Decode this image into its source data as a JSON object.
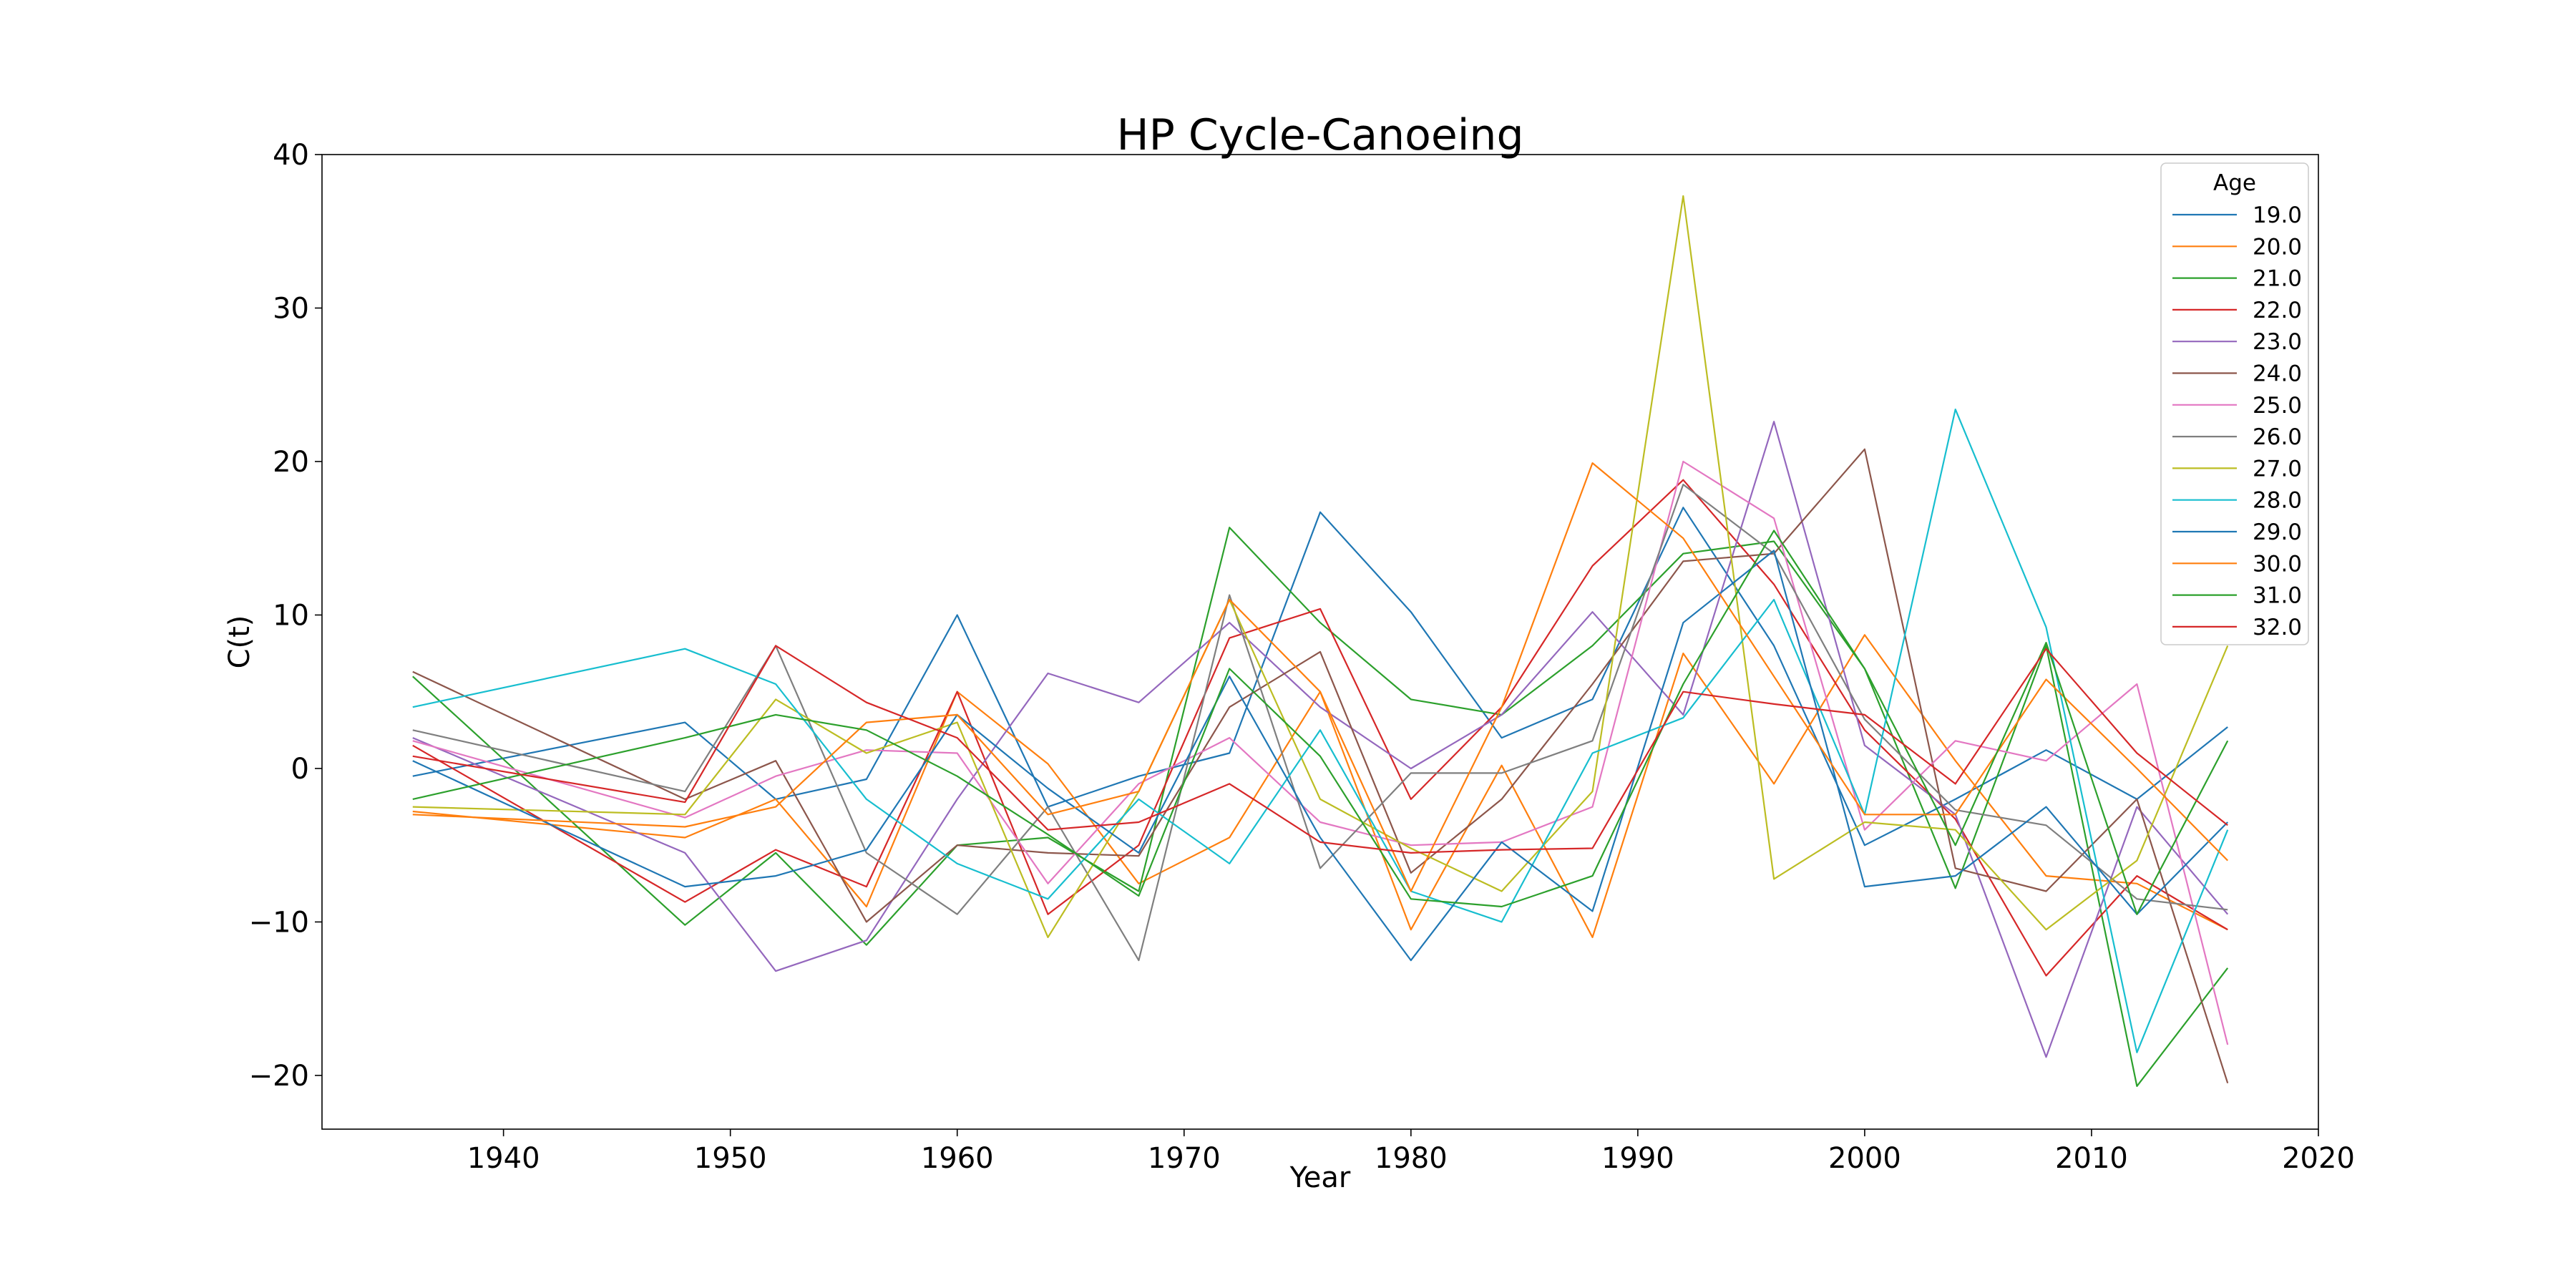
{
  "chart_data": {
    "type": "line",
    "title": "HP Cycle-Canoeing",
    "xlabel": "Year",
    "ylabel": "C(t)",
    "xlim": [
      1932,
      2020
    ],
    "ylim": [
      -23.5,
      40
    ],
    "xticks": [
      1940,
      1950,
      1960,
      1970,
      1980,
      1990,
      2000,
      2010,
      2020
    ],
    "yticks": [
      -20,
      -10,
      0,
      10,
      20,
      30,
      40
    ],
    "ytick_labels": [
      "−20",
      "−10",
      "0",
      "10",
      "20",
      "30",
      "40"
    ],
    "grid": false,
    "legend": {
      "title": "Age",
      "placement": "top-right"
    },
    "x": [
      1936,
      1948,
      1952,
      1956,
      1960,
      1964,
      1968,
      1972,
      1976,
      1980,
      1984,
      1988,
      1992,
      1996,
      2000,
      2004,
      2008,
      2012,
      2016
    ],
    "series": [
      {
        "name": "19.0",
        "color": "#1f77b4",
        "values": [
          -0.5,
          3.0,
          -2.0,
          -0.7,
          10.0,
          -2.5,
          -0.5,
          1.0,
          16.7,
          10.2,
          2.0,
          4.5,
          17.0,
          8.0,
          -5.0,
          -2.0,
          1.2,
          -2.0,
          2.7
        ]
      },
      {
        "name": "20.0",
        "color": "#ff7f0e",
        "values": [
          -2.8,
          -4.5,
          -2.0,
          -9.0,
          5.0,
          0.3,
          -7.5,
          -4.5,
          5.0,
          -10.5,
          0.2,
          -11.0,
          7.5,
          -1.0,
          8.7,
          0.5,
          -7.0,
          -7.5,
          -10.5
        ]
      },
      {
        "name": "21.0",
        "color": "#2ca02c",
        "values": [
          6.0,
          -10.2,
          -5.5,
          -11.5,
          -5.0,
          -4.5,
          -8.0,
          15.7,
          9.5,
          4.5,
          3.5,
          8.0,
          14.0,
          14.8,
          6.5,
          -7.8,
          8.0,
          -20.7,
          -13.0
        ]
      },
      {
        "name": "22.0",
        "color": "#d62728",
        "values": [
          1.5,
          -8.7,
          -5.3,
          -7.7,
          5.0,
          -9.5,
          -5.0,
          8.5,
          10.4,
          -2.0,
          4.0,
          13.2,
          18.8,
          12.0,
          2.5,
          -3.3,
          -13.5,
          -7.0,
          -10.5
        ]
      },
      {
        "name": "23.0",
        "color": "#9467bd",
        "values": [
          2.0,
          -5.5,
          -13.2,
          -11.2,
          -2.0,
          6.2,
          4.3,
          9.5,
          4.0,
          0.0,
          3.5,
          10.2,
          3.5,
          22.6,
          1.5,
          -3.0,
          -18.8,
          -2.5,
          -9.5
        ]
      },
      {
        "name": "24.0",
        "color": "#8c564b",
        "values": [
          6.3,
          -2.0,
          0.5,
          -10.0,
          -5.0,
          -5.5,
          -5.7,
          4.0,
          7.6,
          -6.8,
          -2.0,
          5.5,
          13.5,
          14.0,
          20.8,
          -6.5,
          -8.0,
          -2.0,
          -20.5
        ]
      },
      {
        "name": "25.0",
        "color": "#e377c2",
        "values": [
          1.8,
          -3.2,
          -0.5,
          1.2,
          1.0,
          -7.5,
          -1.0,
          2.0,
          -3.5,
          -5.0,
          -4.8,
          -2.5,
          20.0,
          16.3,
          -4.0,
          1.8,
          0.5,
          5.5,
          -18.0
        ]
      },
      {
        "name": "26.0",
        "color": "#7f7f7f",
        "values": [
          2.5,
          -1.5,
          8.0,
          -5.5,
          -9.5,
          -2.5,
          -12.5,
          11.3,
          -6.5,
          -0.3,
          -0.3,
          1.8,
          18.5,
          14.0,
          3.2,
          -2.7,
          -3.7,
          -8.5,
          -9.2
        ]
      },
      {
        "name": "27.0",
        "color": "#bcbd22",
        "values": [
          -2.5,
          -3.0,
          4.5,
          1.0,
          3.0,
          -11.0,
          -1.5,
          11.0,
          -2.0,
          -5.2,
          -8.0,
          -1.5,
          37.3,
          -7.2,
          -3.5,
          -4.0,
          -10.5,
          -6.0,
          8.0
        ]
      },
      {
        "name": "28.0",
        "color": "#17becf",
        "values": [
          4.0,
          7.8,
          5.5,
          -2.0,
          -6.2,
          -8.5,
          -2.0,
          -6.2,
          2.5,
          -8.0,
          -10.0,
          1.0,
          3.3,
          11.0,
          -3.0,
          23.4,
          9.2,
          -18.5,
          -4.0
        ]
      },
      {
        "name": "29.0",
        "color": "#1f77b4",
        "values": [
          0.5,
          -7.7,
          -7.0,
          -5.3,
          3.5,
          -1.3,
          -5.5,
          6.0,
          -4.5,
          -12.5,
          -4.8,
          -9.3,
          9.5,
          14.2,
          -7.7,
          -7.0,
          -2.5,
          -9.5,
          -3.5
        ]
      },
      {
        "name": "30.0",
        "color": "#ff7f0e",
        "values": [
          -3.0,
          -3.8,
          -2.5,
          3.0,
          3.5,
          -3.0,
          -1.5,
          11.0,
          5.0,
          -8.0,
          4.0,
          19.9,
          15.0,
          6.0,
          -3.0,
          -3.0,
          5.8,
          0.0,
          -6.0
        ]
      },
      {
        "name": "31.0",
        "color": "#2ca02c",
        "values": [
          -2.0,
          2.0,
          3.5,
          2.5,
          -0.5,
          -4.3,
          -8.3,
          6.5,
          0.8,
          -8.5,
          -9.0,
          -7.0,
          5.5,
          15.5,
          6.5,
          -5.0,
          8.2,
          -9.5,
          1.8
        ]
      },
      {
        "name": "32.0",
        "color": "#d62728",
        "values": [
          0.8,
          -2.2,
          8.0,
          4.3,
          2.0,
          -4.0,
          -3.5,
          -1.0,
          -4.8,
          -5.5,
          -5.3,
          -5.2,
          5.0,
          4.2,
          3.5,
          -1.0,
          7.8,
          1.0,
          -3.7
        ]
      }
    ]
  }
}
